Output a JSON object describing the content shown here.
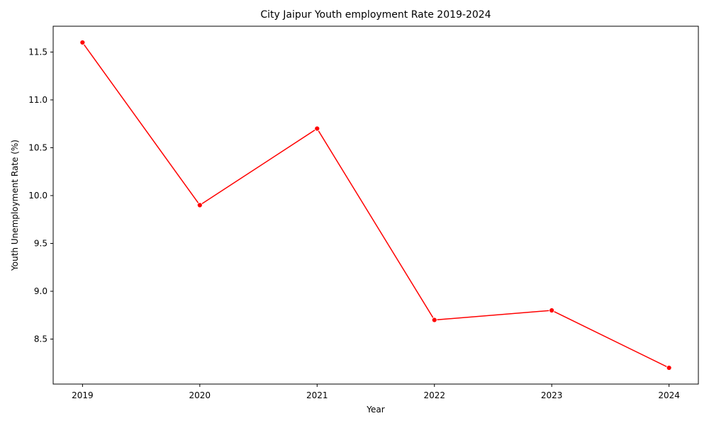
{
  "chart_data": {
    "type": "line",
    "title": "City Jaipur Youth employment Rate 2019-2024",
    "xlabel": "Year",
    "ylabel": "Youth Unemployment Rate (%)",
    "x": [
      2019,
      2020,
      2021,
      2022,
      2023,
      2024
    ],
    "series": [
      {
        "values": [
          11.6,
          9.9,
          10.7,
          8.7,
          8.8,
          8.2
        ],
        "color": "#ff0000",
        "marker": "circle"
      }
    ],
    "xticks": [
      "2019",
      "2020",
      "2021",
      "2022",
      "2023",
      "2024"
    ],
    "yticks": [
      "8.5",
      "9.0",
      "9.5",
      "10.0",
      "10.5",
      "11.0",
      "11.5"
    ],
    "xlim": [
      2018.75,
      2024.25
    ],
    "ylim": [
      8.03,
      11.77
    ],
    "grid": false,
    "legend": "none"
  }
}
